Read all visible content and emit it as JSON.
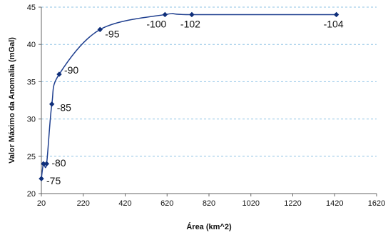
{
  "chart_data": {
    "type": "scatter",
    "title": "",
    "xlabel": "Área (km^2)",
    "ylabel": "Valor Máximo da Anomalia (mGal)",
    "xlim": [
      20,
      1620
    ],
    "ylim": [
      20,
      45
    ],
    "x_ticks": [
      20,
      220,
      420,
      620,
      820,
      1020,
      1220,
      1420,
      1620
    ],
    "y_ticks": [
      20,
      25,
      30,
      35,
      40,
      45
    ],
    "x_tick_labels": [
      "20",
      "220",
      "420",
      "620",
      "820",
      "1020",
      "1220",
      "1420",
      "1620"
    ],
    "y_tick_labels": [
      "20",
      "25",
      "30",
      "35",
      "40",
      "45"
    ],
    "grid": {
      "horizontal": true,
      "vertical": false,
      "style": "dashed",
      "color": "#8fc3e6"
    },
    "line_color": "#1f3f8f",
    "marker_color": "#0f2f7a",
    "smooth": true,
    "series": [
      {
        "x": [
          20,
          30,
          45,
          70,
          105,
          300,
          610,
          738,
          1428
        ],
        "y": [
          22,
          24,
          24,
          32,
          36,
          42,
          44,
          44,
          44
        ],
        "labels": [
          "-75",
          "",
          "-80",
          "-85",
          "-90",
          "-95",
          "-100",
          "-102",
          "-104"
        ]
      }
    ]
  }
}
